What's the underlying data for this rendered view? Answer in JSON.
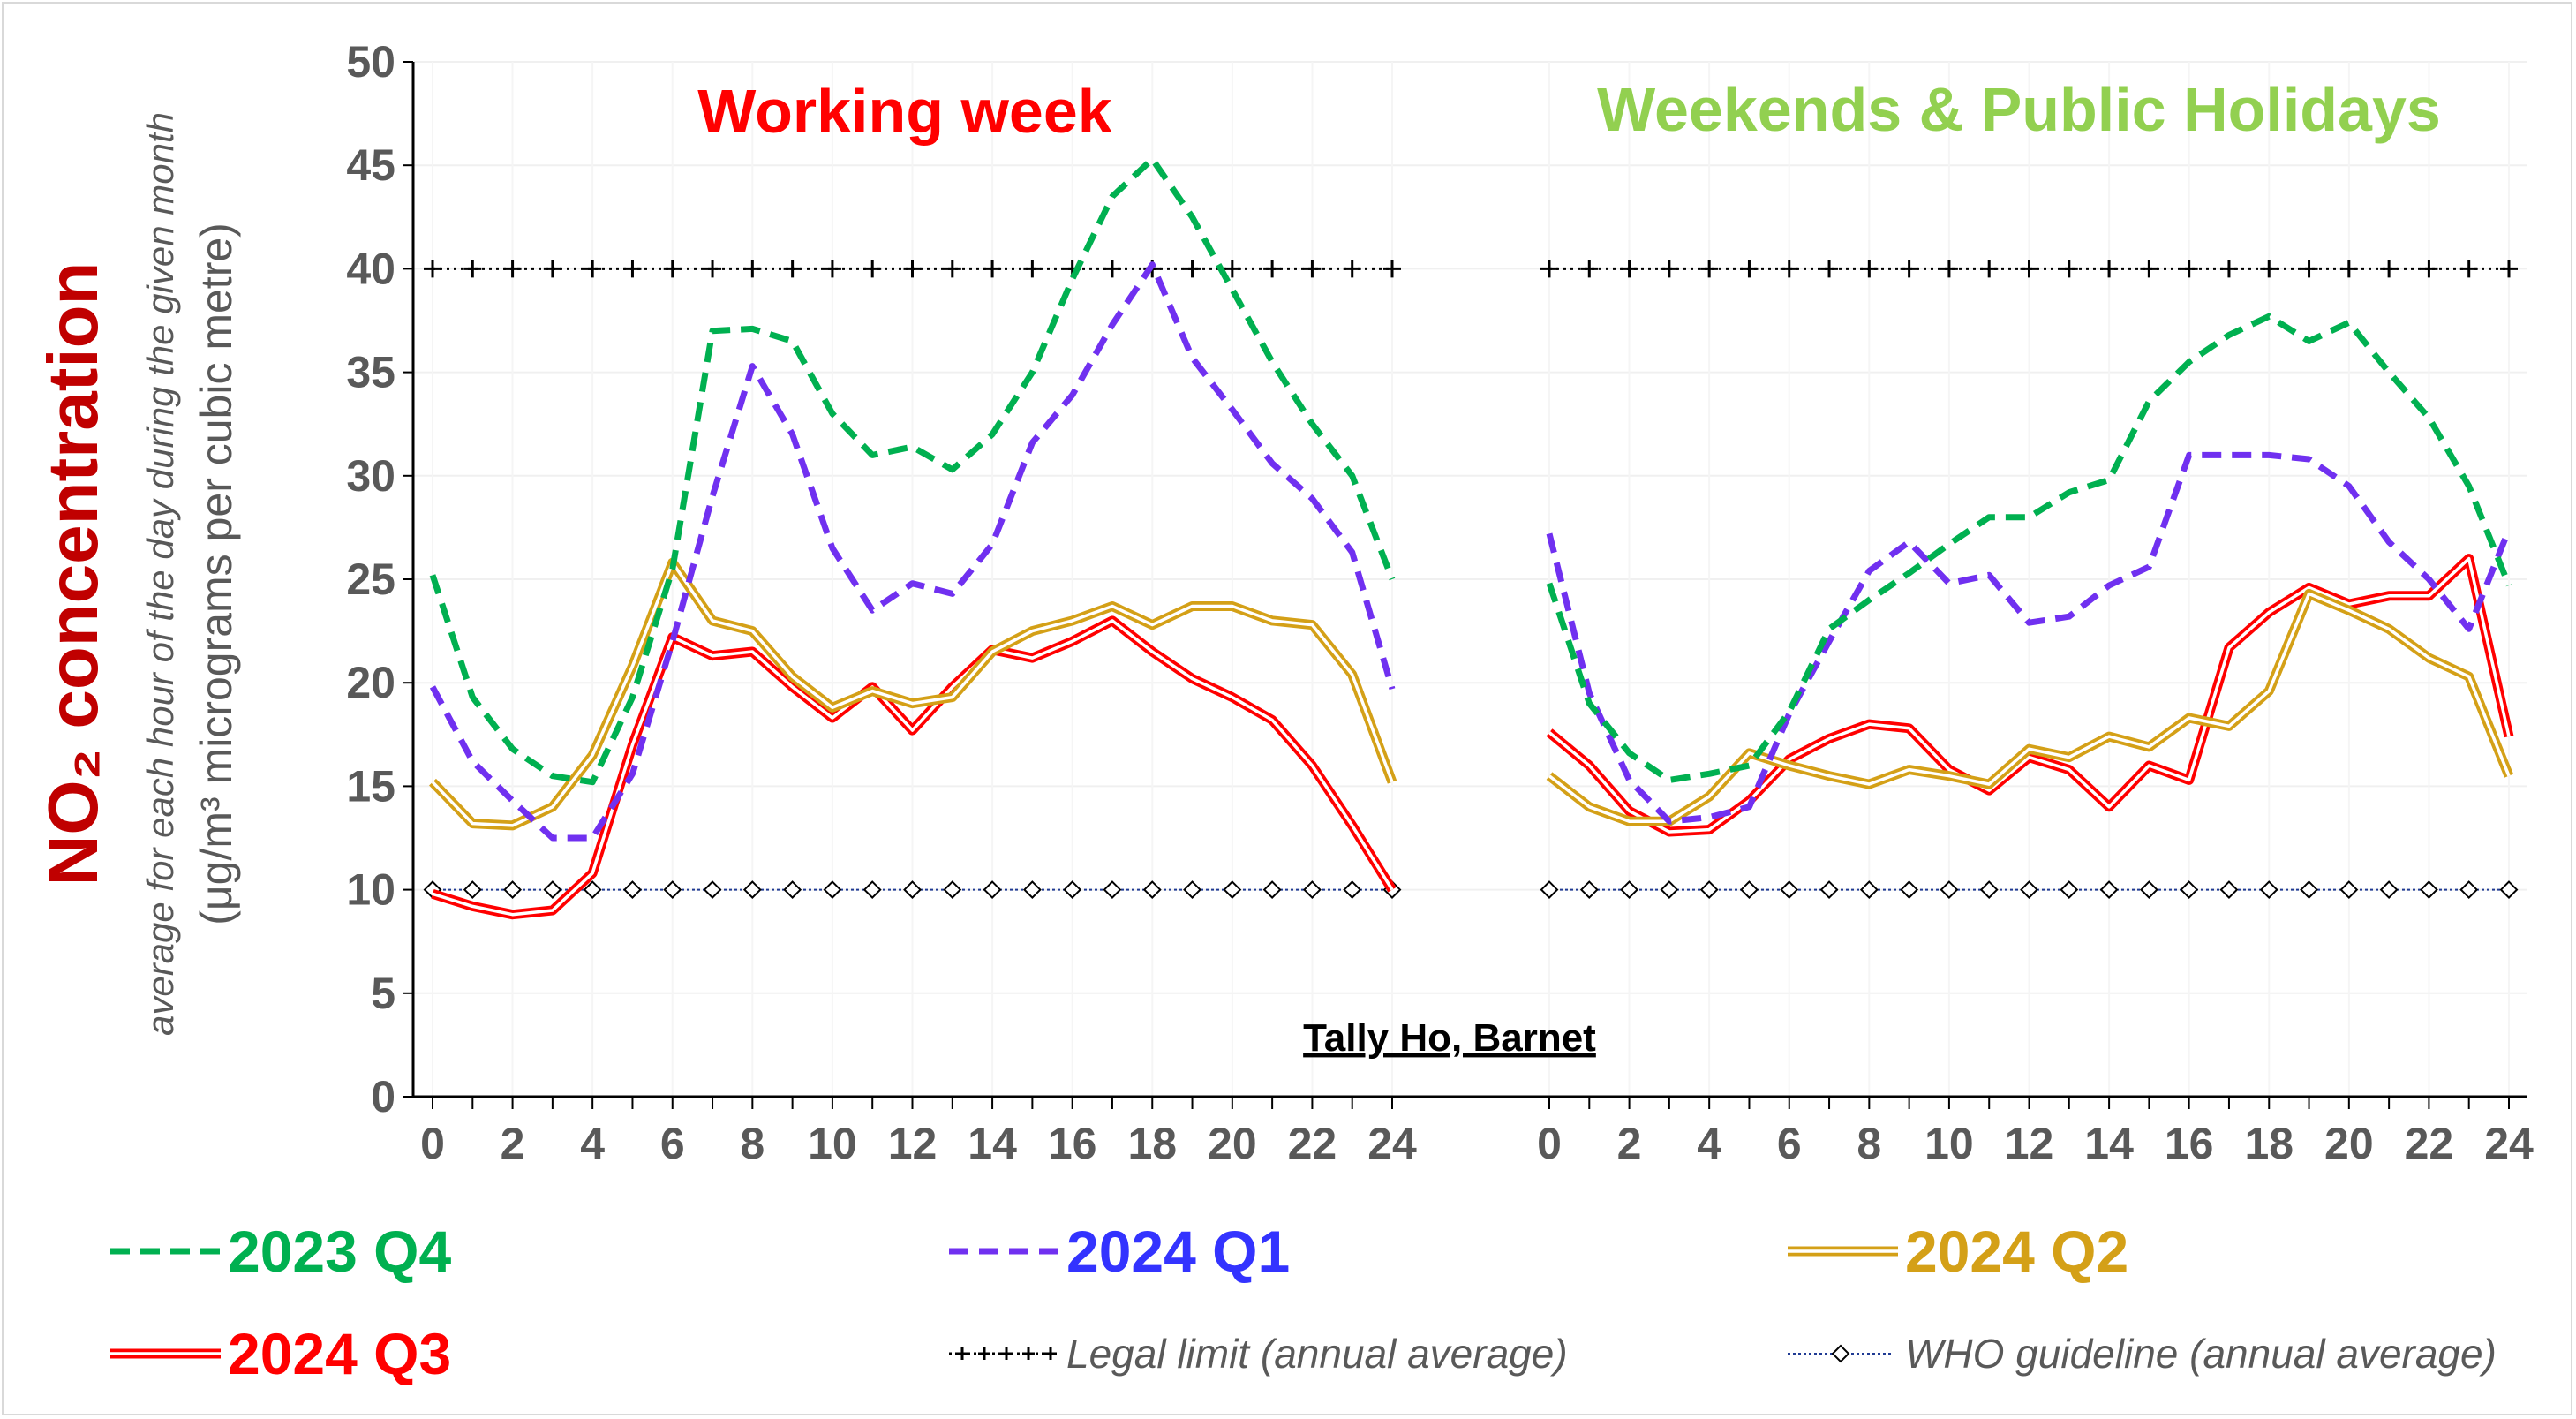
{
  "chart_data": {
    "type": "line",
    "y_title_main": "NO₂ concentration",
    "y_title_sub": "average for each hour of the day during the given month",
    "y_title_unit": "(μg/m³ micrograms per cubic metre)",
    "site_label": "Tally Ho, Barnet",
    "ylim": [
      0,
      50
    ],
    "y_ticks": [
      "0",
      "5",
      "10",
      "15",
      "20",
      "25",
      "30",
      "35",
      "40",
      "45",
      "50"
    ],
    "x_ticks": [
      "0",
      "2",
      "4",
      "6",
      "8",
      "10",
      "12",
      "14",
      "16",
      "18",
      "20",
      "22",
      "24"
    ],
    "grid": true,
    "legend_position": "bottom",
    "panels": [
      {
        "title": "Working week",
        "title_color": "#ff0000",
        "x": [
          0,
          1,
          2,
          3,
          4,
          5,
          6,
          7,
          8,
          9,
          10,
          11,
          12,
          13,
          14,
          15,
          16,
          17,
          18,
          19,
          20,
          21,
          22,
          23,
          24
        ],
        "series": [
          {
            "name": "2023 Q4",
            "values": [
              25.2,
              19.3,
              16.8,
              15.5,
              15.2,
              19.3,
              25.5,
              37.0,
              37.1,
              36.5,
              33.0,
              31.0,
              31.4,
              30.3,
              32.0,
              35.0,
              39.5,
              43.5,
              45.3,
              42.5,
              39.0,
              35.5,
              32.5,
              30.0,
              25.0
            ]
          },
          {
            "name": "2024 Q1",
            "values": [
              19.8,
              16.2,
              14.3,
              12.5,
              12.5,
              15.6,
              22.0,
              29.0,
              35.3,
              32.0,
              26.5,
              23.5,
              24.8,
              24.3,
              26.7,
              31.6,
              33.9,
              37.3,
              40.2,
              35.7,
              33.2,
              30.6,
              28.9,
              26.3,
              19.7
            ]
          },
          {
            "name": "2024 Q2",
            "values": [
              15.2,
              13.2,
              13.1,
              14.0,
              16.5,
              20.8,
              25.8,
              23.0,
              22.5,
              20.3,
              18.8,
              19.6,
              19.0,
              19.3,
              21.5,
              22.5,
              23.0,
              23.7,
              22.8,
              23.7,
              23.7,
              23.0,
              22.8,
              20.4,
              15.2
            ]
          },
          {
            "name": "2024 Q3",
            "values": [
              9.8,
              9.2,
              8.8,
              9.0,
              10.8,
              17.0,
              22.2,
              21.3,
              21.5,
              19.8,
              18.3,
              19.8,
              17.7,
              19.8,
              21.6,
              21.2,
              22.0,
              23.0,
              21.5,
              20.2,
              19.3,
              18.2,
              16.0,
              13.1,
              10.0
            ]
          }
        ]
      },
      {
        "title": "Weekends & Public Holidays",
        "title_color": "#92d050",
        "x": [
          0,
          1,
          2,
          3,
          4,
          5,
          6,
          7,
          8,
          9,
          10,
          11,
          12,
          13,
          14,
          15,
          16,
          17,
          18,
          19,
          20,
          21,
          22,
          23,
          24
        ],
        "series": [
          {
            "name": "2023 Q4",
            "values": [
              24.8,
              19.0,
              16.6,
              15.3,
              15.6,
              16.0,
              18.6,
              22.6,
              24.0,
              25.3,
              26.7,
              28.0,
              28.0,
              29.2,
              29.8,
              33.6,
              35.5,
              36.8,
              37.7,
              36.5,
              37.4,
              35.0,
              32.8,
              29.5,
              24.7
            ]
          },
          {
            "name": "2024 Q1",
            "values": [
              27.2,
              19.5,
              15.3,
              13.3,
              13.5,
              14.0,
              18.5,
              22.0,
              25.4,
              26.8,
              24.8,
              25.2,
              22.9,
              23.2,
              24.7,
              25.6,
              31.0,
              31.0,
              31.0,
              30.8,
              29.5,
              26.8,
              25.0,
              22.6,
              27.4
            ]
          },
          {
            "name": "2024 Q2",
            "values": [
              15.5,
              14.0,
              13.3,
              13.3,
              14.5,
              16.6,
              16.0,
              15.5,
              15.1,
              15.8,
              15.5,
              15.1,
              16.8,
              16.4,
              17.4,
              16.9,
              18.3,
              17.9,
              19.6,
              24.3,
              23.5,
              22.6,
              21.2,
              20.3,
              15.5
            ]
          },
          {
            "name": "2024 Q3",
            "values": [
              17.6,
              16.0,
              13.8,
              12.8,
              12.9,
              14.3,
              16.3,
              17.3,
              18.0,
              17.8,
              15.8,
              14.8,
              16.4,
              15.8,
              14.0,
              16.0,
              15.3,
              21.7,
              23.4,
              24.6,
              23.8,
              24.2,
              24.2,
              26.0,
              17.4
            ]
          }
        ],
        "reference_lines": [
          {
            "name": "Legal limit (annual average)",
            "value": 40
          },
          {
            "name": "WHO guideline (annual average)",
            "value": 10
          }
        ]
      }
    ],
    "series_styles": [
      {
        "name": "2023 Q4",
        "color": "#00b050",
        "style": "dashed"
      },
      {
        "name": "2024 Q1",
        "color": "#7030f0",
        "style": "dashed"
      },
      {
        "name": "2024 Q2",
        "color": "#d4a017",
        "style": "double"
      },
      {
        "name": "2024 Q3",
        "color": "#ff0000",
        "style": "double"
      }
    ],
    "legend": [
      {
        "label": "2023 Q4",
        "text_color": "#00b050",
        "line_color": "#00b050",
        "style": "dashed"
      },
      {
        "label": "2024 Q1",
        "text_color": "#3333ff",
        "line_color": "#7030f0",
        "style": "dashed"
      },
      {
        "label": "2024 Q2",
        "text_color": "#d4a017",
        "line_color": "#d4a017",
        "style": "double"
      },
      {
        "label": "2024 Q3",
        "text_color": "#ff0000",
        "line_color": "#ff0000",
        "style": "double"
      },
      {
        "label": "Legal limit (annual average)",
        "line_color": "#000000",
        "style": "legal"
      },
      {
        "label": "WHO guideline (annual average)",
        "line_color": "#1f3a93",
        "style": "who"
      }
    ],
    "colors": {
      "y_title": "#c00000",
      "axis_text": "#595959",
      "grid": "#f0f0f0"
    }
  }
}
